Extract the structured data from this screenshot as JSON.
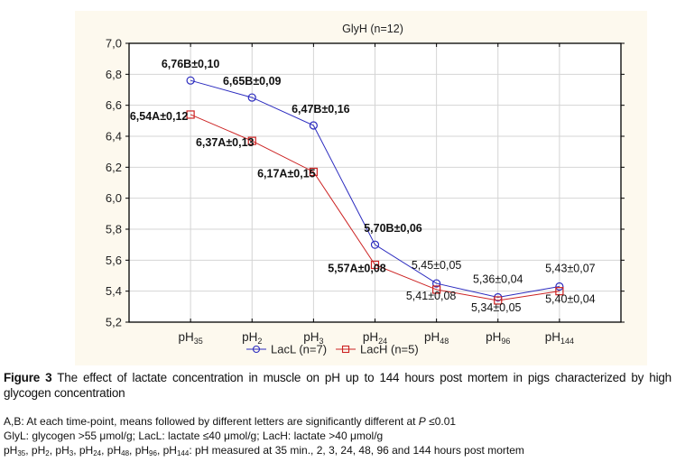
{
  "chart_data": {
    "type": "line",
    "title": "GlyH (n=12)",
    "xlabel": "",
    "ylabel": "",
    "categories": [
      {
        "base": "pH",
        "sub": "35"
      },
      {
        "base": "pH",
        "sub": "2"
      },
      {
        "base": "pH",
        "sub": "3"
      },
      {
        "base": "pH",
        "sub": "24"
      },
      {
        "base": "pH",
        "sub": "48"
      },
      {
        "base": "pH",
        "sub": "96"
      },
      {
        "base": "pH",
        "sub": "144"
      }
    ],
    "ylim": [
      5.2,
      7.0
    ],
    "yticks": [
      "5,2",
      "5,4",
      "5,6",
      "5,8",
      "6,0",
      "6,2",
      "6,4",
      "6,6",
      "6,8",
      "7,0"
    ],
    "grid": true,
    "legend_position": "bottom-center",
    "series": [
      {
        "name": "LacL (n=7)",
        "color": "#2b2bbf",
        "marker": "circle",
        "values": [
          6.76,
          6.65,
          6.47,
          5.7,
          5.45,
          5.36,
          5.43
        ],
        "labels": [
          "6,76B±0,10",
          "6,65B±0,09",
          "6,47B±0,16",
          "5,70B±0,06",
          "5,45±0,05",
          "5,36±0,04",
          "5,43±0,07"
        ],
        "label_bold": [
          true,
          true,
          true,
          true,
          false,
          false,
          false
        ]
      },
      {
        "name": "LacH (n=5)",
        "color": "#cc2222",
        "marker": "square",
        "values": [
          6.54,
          6.37,
          6.17,
          5.57,
          5.41,
          5.34,
          5.4
        ],
        "labels": [
          "6,54A±0,12",
          "6,37A±0,13",
          "6,17A±0,15",
          "5,57A±0,08",
          "5,41±0,08",
          "5,34±0,05",
          "5,40±0,04"
        ],
        "label_bold": [
          true,
          true,
          true,
          true,
          false,
          false,
          false
        ]
      }
    ]
  },
  "caption": {
    "figure_label": "Figure 3",
    "text": " The effect of lactate concentration in muscle on pH up to 144 hours post mortem in pigs characterized by high glycogen concentration"
  },
  "notes": {
    "line1_pre": "A,B: At each time-point, means followed by different letters are significantly different at ",
    "line1_p": "P",
    "line1_post": " ≤0.01",
    "line2": "GlyL: glycogen >55 μmol/g; LacL: lactate ≤40 μmol/g; LacH: lactate >40 μmol/g",
    "line3_terms": [
      {
        "base": "pH",
        "sub": "35"
      },
      {
        "base": "pH",
        "sub": "2"
      },
      {
        "base": "pH",
        "sub": "3"
      },
      {
        "base": "pH",
        "sub": "24"
      },
      {
        "base": "pH",
        "sub": "48"
      },
      {
        "base": "pH",
        "sub": "96"
      },
      {
        "base": "pH",
        "sub": "144"
      }
    ],
    "line3_post": ": pH measured at 35 min., 2, 3, 24, 48, 96 and 144 hours post mortem"
  }
}
